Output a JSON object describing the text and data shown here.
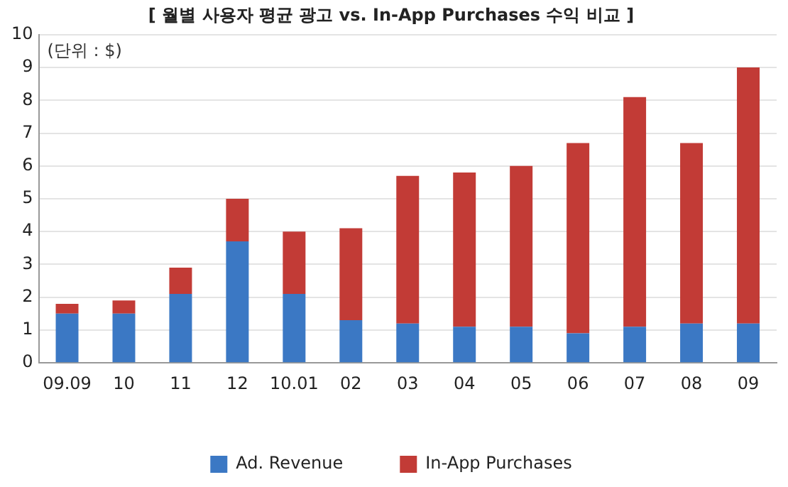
{
  "chart_data": {
    "type": "bar",
    "stacked": true,
    "title": "[ 월별 사용자 평균 광고 vs. In-App Purchases 수익 비교 ]",
    "annotations": [
      "(단위 : $)"
    ],
    "categories": [
      "09.09",
      "10",
      "11",
      "12",
      "10.01",
      "02",
      "03",
      "04",
      "05",
      "06",
      "07",
      "08",
      "09"
    ],
    "series": [
      {
        "name": "Ad. Revenue",
        "color": "#3b78c4",
        "values": [
          1.5,
          1.5,
          2.1,
          3.7,
          2.1,
          1.3,
          1.2,
          1.1,
          1.1,
          0.9,
          1.1,
          1.2,
          1.2
        ]
      },
      {
        "name": "In-App Purchases",
        "color": "#c23b36",
        "values": [
          0.3,
          0.4,
          0.8,
          1.3,
          1.9,
          2.8,
          4.5,
          4.7,
          4.9,
          5.8,
          7.0,
          5.5,
          7.8
        ]
      }
    ],
    "ylim": [
      0,
      10
    ],
    "yticks": [
      0,
      1,
      2,
      3,
      4,
      5,
      6,
      7,
      8,
      9,
      10
    ],
    "grid": "y",
    "legend": "bottom"
  }
}
